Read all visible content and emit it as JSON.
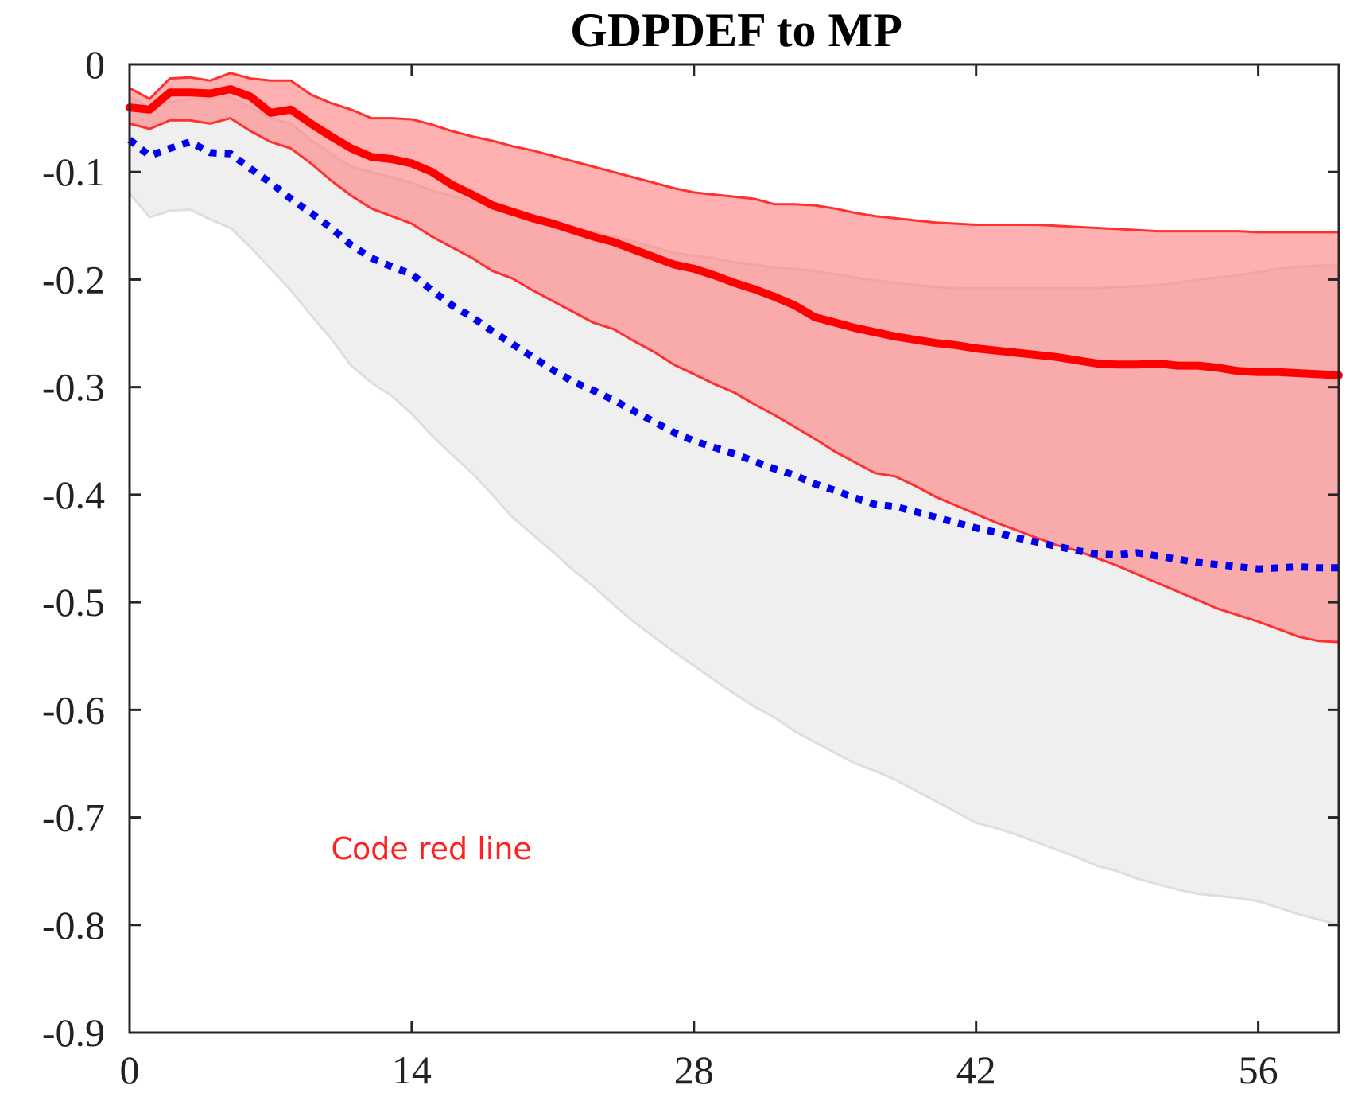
{
  "chart_data": {
    "type": "line",
    "title": "GDPDEF to MP",
    "xlabel": "",
    "ylabel": "",
    "xlim": [
      0,
      60
    ],
    "ylim": [
      -0.9,
      0
    ],
    "xticks": [
      0,
      14,
      28,
      42,
      56
    ],
    "xtick_labels": [
      "0",
      "14",
      "28",
      "42",
      "56"
    ],
    "yticks": [
      0,
      -0.1,
      -0.2,
      -0.3,
      -0.4,
      -0.5,
      -0.6,
      -0.7,
      -0.8,
      -0.9
    ],
    "ytick_labels": [
      "0",
      "-0.1",
      "-0.2",
      "-0.3",
      "-0.4",
      "-0.5",
      "-0.6",
      "-0.7",
      "-0.8",
      "-0.9"
    ],
    "grid": false,
    "annotation": {
      "text": "Code red line",
      "x": 10,
      "y": -0.73,
      "color": "#ff2020"
    },
    "x": [
      0,
      1,
      2,
      3,
      4,
      5,
      6,
      7,
      8,
      9,
      10,
      11,
      12,
      13,
      14,
      15,
      16,
      17,
      18,
      19,
      20,
      21,
      22,
      23,
      24,
      25,
      26,
      27,
      28,
      29,
      30,
      31,
      32,
      33,
      34,
      35,
      36,
      37,
      38,
      39,
      40,
      41,
      42,
      43,
      44,
      45,
      46,
      47,
      48,
      49,
      50,
      51,
      52,
      53,
      54,
      55,
      56,
      57,
      58,
      59,
      60
    ],
    "bands": [
      {
        "role": "grey-band",
        "color": "#d9d9d9",
        "fill": "#efefef",
        "upper": [
          -0.03,
          -0.04,
          -0.035,
          -0.032,
          -0.031,
          -0.03,
          -0.04,
          -0.05,
          -0.055,
          -0.07,
          -0.083,
          -0.095,
          -0.1,
          -0.105,
          -0.11,
          -0.117,
          -0.122,
          -0.127,
          -0.132,
          -0.136,
          -0.14,
          -0.146,
          -0.151,
          -0.156,
          -0.16,
          -0.164,
          -0.17,
          -0.175,
          -0.178,
          -0.18,
          -0.184,
          -0.186,
          -0.189,
          -0.19,
          -0.192,
          -0.195,
          -0.198,
          -0.201,
          -0.203,
          -0.205,
          -0.207,
          -0.208,
          -0.208,
          -0.208,
          -0.208,
          -0.208,
          -0.208,
          -0.208,
          -0.208,
          -0.207,
          -0.206,
          -0.205,
          -0.203,
          -0.2,
          -0.198,
          -0.196,
          -0.193,
          -0.19,
          -0.188,
          -0.187,
          -0.187
        ],
        "lower": [
          -0.12,
          -0.142,
          -0.136,
          -0.135,
          -0.144,
          -0.152,
          -0.17,
          -0.19,
          -0.21,
          -0.233,
          -0.255,
          -0.28,
          -0.296,
          -0.308,
          -0.325,
          -0.345,
          -0.363,
          -0.38,
          -0.4,
          -0.421,
          -0.437,
          -0.453,
          -0.47,
          -0.485,
          -0.502,
          -0.518,
          -0.532,
          -0.546,
          -0.559,
          -0.572,
          -0.585,
          -0.597,
          -0.607,
          -0.62,
          -0.63,
          -0.64,
          -0.65,
          -0.657,
          -0.665,
          -0.675,
          -0.685,
          -0.695,
          -0.705,
          -0.71,
          -0.716,
          -0.723,
          -0.73,
          -0.737,
          -0.745,
          -0.75,
          -0.757,
          -0.762,
          -0.767,
          -0.771,
          -0.773,
          -0.775,
          -0.778,
          -0.784,
          -0.79,
          -0.795,
          -0.8
        ]
      },
      {
        "role": "red-band",
        "color": "#ff3030",
        "fill": "#ff8080",
        "upper": [
          -0.022,
          -0.032,
          -0.013,
          -0.012,
          -0.015,
          -0.008,
          -0.013,
          -0.015,
          -0.015,
          -0.028,
          -0.036,
          -0.042,
          -0.05,
          -0.05,
          -0.051,
          -0.056,
          -0.062,
          -0.067,
          -0.071,
          -0.076,
          -0.08,
          -0.085,
          -0.09,
          -0.095,
          -0.1,
          -0.105,
          -0.11,
          -0.115,
          -0.119,
          -0.121,
          -0.123,
          -0.125,
          -0.13,
          -0.13,
          -0.131,
          -0.134,
          -0.138,
          -0.141,
          -0.143,
          -0.145,
          -0.147,
          -0.148,
          -0.149,
          -0.149,
          -0.149,
          -0.149,
          -0.15,
          -0.151,
          -0.152,
          -0.153,
          -0.154,
          -0.155,
          -0.155,
          -0.155,
          -0.155,
          -0.155,
          -0.156,
          -0.156,
          -0.156,
          -0.156,
          -0.156
        ],
        "lower": [
          -0.055,
          -0.06,
          -0.052,
          -0.052,
          -0.055,
          -0.05,
          -0.062,
          -0.072,
          -0.078,
          -0.092,
          -0.108,
          -0.122,
          -0.134,
          -0.141,
          -0.148,
          -0.16,
          -0.17,
          -0.18,
          -0.192,
          -0.199,
          -0.21,
          -0.22,
          -0.23,
          -0.24,
          -0.246,
          -0.257,
          -0.267,
          -0.279,
          -0.288,
          -0.297,
          -0.305,
          -0.316,
          -0.326,
          -0.337,
          -0.348,
          -0.36,
          -0.37,
          -0.38,
          -0.383,
          -0.392,
          -0.402,
          -0.41,
          -0.418,
          -0.426,
          -0.433,
          -0.44,
          -0.447,
          -0.452,
          -0.459,
          -0.466,
          -0.474,
          -0.482,
          -0.49,
          -0.498,
          -0.506,
          -0.512,
          -0.518,
          -0.525,
          -0.532,
          -0.536,
          -0.537
        ]
      }
    ],
    "series": [
      {
        "role": "red-median",
        "color": "#ff0000",
        "style": "solid",
        "values": [
          -0.04,
          -0.042,
          -0.026,
          -0.026,
          -0.027,
          -0.023,
          -0.03,
          -0.045,
          -0.042,
          -0.055,
          -0.067,
          -0.078,
          -0.086,
          -0.088,
          -0.092,
          -0.1,
          -0.112,
          -0.121,
          -0.131,
          -0.137,
          -0.143,
          -0.148,
          -0.154,
          -0.16,
          -0.165,
          -0.172,
          -0.179,
          -0.186,
          -0.19,
          -0.196,
          -0.203,
          -0.209,
          -0.216,
          -0.224,
          -0.235,
          -0.24,
          -0.245,
          -0.249,
          -0.253,
          -0.256,
          -0.259,
          -0.261,
          -0.264,
          -0.266,
          -0.268,
          -0.27,
          -0.272,
          -0.275,
          -0.278,
          -0.279,
          -0.279,
          -0.278,
          -0.28,
          -0.28,
          -0.282,
          -0.285,
          -0.286,
          -0.286,
          -0.287,
          -0.288,
          -0.289
        ]
      },
      {
        "role": "blue-median",
        "color": "#0000ee",
        "style": "dotted",
        "values": [
          -0.07,
          -0.085,
          -0.078,
          -0.072,
          -0.082,
          -0.083,
          -0.097,
          -0.11,
          -0.125,
          -0.138,
          -0.152,
          -0.168,
          -0.18,
          -0.188,
          -0.195,
          -0.21,
          -0.224,
          -0.235,
          -0.248,
          -0.26,
          -0.272,
          -0.284,
          -0.295,
          -0.303,
          -0.312,
          -0.322,
          -0.332,
          -0.342,
          -0.35,
          -0.356,
          -0.362,
          -0.369,
          -0.376,
          -0.382,
          -0.39,
          -0.396,
          -0.403,
          -0.409,
          -0.411,
          -0.416,
          -0.421,
          -0.426,
          -0.431,
          -0.435,
          -0.44,
          -0.444,
          -0.448,
          -0.452,
          -0.455,
          -0.456,
          -0.454,
          -0.457,
          -0.46,
          -0.463,
          -0.465,
          -0.467,
          -0.469,
          -0.468,
          -0.467,
          -0.468,
          -0.468
        ]
      }
    ]
  }
}
